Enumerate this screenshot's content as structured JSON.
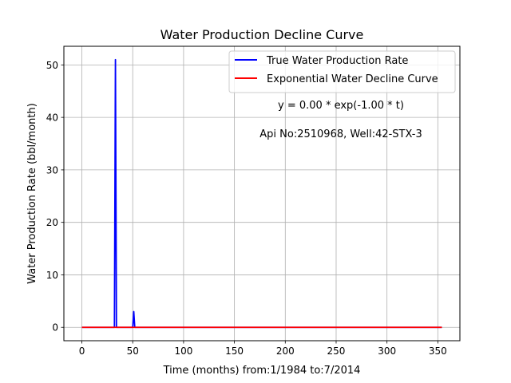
{
  "chart_data": {
    "type": "line",
    "title": "Water Production Decline Curve",
    "xlabel": "Time (months) from:1/1984 to:7/2014",
    "ylabel": "Water Production Rate (bbl/month)",
    "xlim": [
      -17.7,
      371.7
    ],
    "ylim": [
      -2.55,
      53.55
    ],
    "xticks": [
      0,
      50,
      100,
      150,
      200,
      250,
      300,
      350
    ],
    "yticks": [
      0,
      10,
      20,
      30,
      40,
      50
    ],
    "grid": true,
    "legend_position": "top-right",
    "series": [
      {
        "name": "True Water Production Rate",
        "color": "#0000ff",
        "x": [
          0,
          32,
          33,
          34,
          35,
          50,
          51,
          52,
          354
        ],
        "y": [
          0,
          0,
          51,
          0,
          0,
          0,
          3,
          0,
          0
        ]
      },
      {
        "name": "Exponential Water Decline Curve",
        "color": "#ff0000",
        "x": [
          0,
          354
        ],
        "y": [
          0,
          0
        ]
      }
    ],
    "annotations": [
      "y = 0.00 * exp(-1.00 * t)",
      "Api No:2510968, Well:42-STX-3"
    ]
  }
}
